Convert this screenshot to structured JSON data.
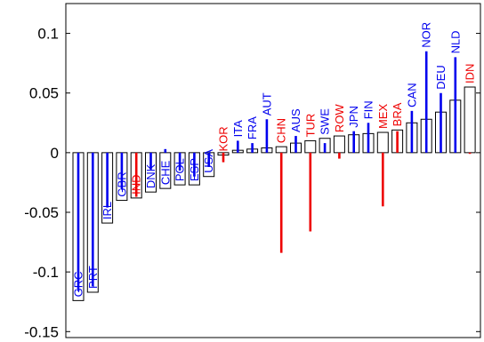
{
  "chart_data": {
    "type": "bar",
    "title": "",
    "xlabel": "",
    "ylabel": "",
    "ylim": [
      -0.155,
      0.125
    ],
    "yticks": [
      -0.15,
      -0.1,
      -0.05,
      0,
      0.05,
      0.1
    ],
    "ytick_labels": [
      "-0.15",
      "-0.1",
      "-0.05",
      "0",
      "0.05",
      "0.1"
    ],
    "grid": false,
    "legend": "none",
    "colors": {
      "blue_group": "#0000ee",
      "red_group": "#ee0000",
      "bar_edge": "#000000",
      "bar_fill": "#ffffff"
    },
    "categories": [
      "GRC",
      "PRT",
      "IRL",
      "GBR",
      "IND",
      "DNK",
      "CHE",
      "POL",
      "ESP",
      "USA",
      "KOR",
      "ITA",
      "FRA",
      "AUT",
      "CHN",
      "AUS",
      "TUR",
      "SWE",
      "ROW",
      "JPN",
      "FIN",
      "MEX",
      "BRA",
      "CAN",
      "NOR",
      "DEU",
      "NLD",
      "IDN"
    ],
    "label_color_group": [
      "blue",
      "blue",
      "blue",
      "blue",
      "red",
      "blue",
      "blue",
      "blue",
      "blue",
      "blue",
      "red",
      "blue",
      "blue",
      "blue",
      "red",
      "blue",
      "red",
      "blue",
      "red",
      "blue",
      "blue",
      "red",
      "red",
      "blue",
      "blue",
      "blue",
      "blue",
      "red"
    ],
    "series": [
      {
        "kind": "bar",
        "values": [
          -0.124,
          -0.117,
          -0.059,
          -0.04,
          -0.038,
          -0.033,
          -0.03,
          -0.027,
          -0.027,
          -0.02,
          -0.002,
          0.002,
          0.003,
          0.004,
          0.005,
          0.008,
          0.01,
          0.012,
          0.014,
          0.015,
          0.016,
          0.017,
          0.019,
          0.025,
          0.028,
          0.034,
          0.044,
          0.055
        ]
      },
      {
        "kind": "stem",
        "values": [
          -0.116,
          -0.112,
          -0.046,
          -0.031,
          -0.037,
          -0.014,
          0.003,
          -0.015,
          -0.02,
          -0.012,
          -0.008,
          0.01,
          0.008,
          0.028,
          -0.084,
          0.014,
          -0.066,
          0.008,
          -0.005,
          0.018,
          0.025,
          -0.045,
          0.018,
          0.035,
          0.085,
          0.05,
          0.08,
          -0.001
        ]
      }
    ]
  }
}
